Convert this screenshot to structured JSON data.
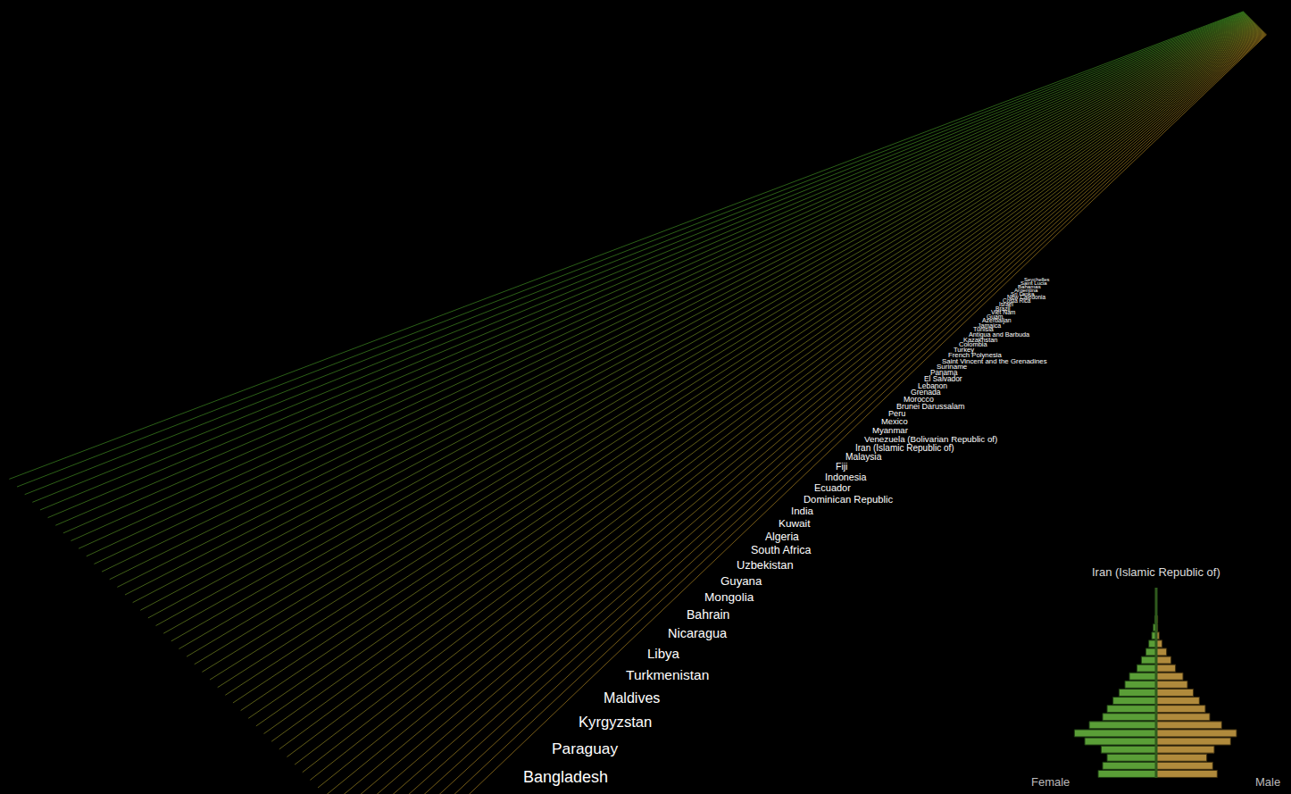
{
  "chart_data": {
    "type": "bar",
    "title": "Iran (Islamic Republic of)",
    "orientation": "horizontal",
    "categories": [
      null,
      null,
      null,
      null,
      null,
      null,
      null,
      null,
      null,
      null,
      null,
      null,
      null,
      null,
      null,
      null,
      null,
      null,
      null,
      null
    ],
    "series": [
      {
        "name": "Female",
        "color": "#5a9e37",
        "values": [
          3.9,
          3.6,
          3.3,
          3.7,
          4.8,
          5.5,
          4.5,
          3.6,
          3.3,
          2.9,
          2.5,
          2.1,
          1.8,
          1.3,
          1.0,
          0.7,
          0.5,
          0.3,
          0.2,
          0.1
        ]
      },
      {
        "name": "Male",
        "color": "#b08a3c",
        "values": [
          4.1,
          3.8,
          3.4,
          3.9,
          5.0,
          5.4,
          4.4,
          3.6,
          3.3,
          2.9,
          2.5,
          2.1,
          1.8,
          1.3,
          1.0,
          0.7,
          0.4,
          0.2,
          0.1,
          0.1
        ]
      }
    ],
    "xlim": [
      0,
      6
    ],
    "xticks": [],
    "tick_labels": false,
    "grid": false
  },
  "country_labels": [
    "Bangladesh",
    "Paraguay",
    "Kyrgyzstan",
    "Maldives",
    "Turkmenistan",
    "Libya",
    "Nicaragua",
    "Bahrain",
    "Mongolia",
    "Guyana",
    "Uzbekistan",
    "South Africa",
    "Algeria",
    "Kuwait",
    "India",
    "Dominican Republic",
    "Ecuador",
    "Indonesia",
    "Fiji",
    "Malaysia",
    "Iran (Islamic Republic of)",
    "Venezuela (Bolivarian Republic of)",
    "Myanmar",
    "Mexico",
    "Peru",
    "Brunei Darussalam",
    "Morocco",
    "Grenada",
    "Lebanon",
    "El Salvador",
    "Panama",
    "Suriname",
    "Saint Vincent and the Grenadines",
    "French Polynesia",
    "Turkey",
    "Colombia",
    "Kazakhstan",
    "Antigua and Barbuda",
    "Tunisia",
    "Jamaica",
    "Azerbaijan",
    "Guam",
    "Viet Nam",
    "Brazil",
    "Israel",
    "Costa Rica",
    "New Caledonia",
    "Sri Lanka",
    "Argentina",
    "Bahamas",
    "Saint Lucia",
    "Seychelles"
  ]
}
